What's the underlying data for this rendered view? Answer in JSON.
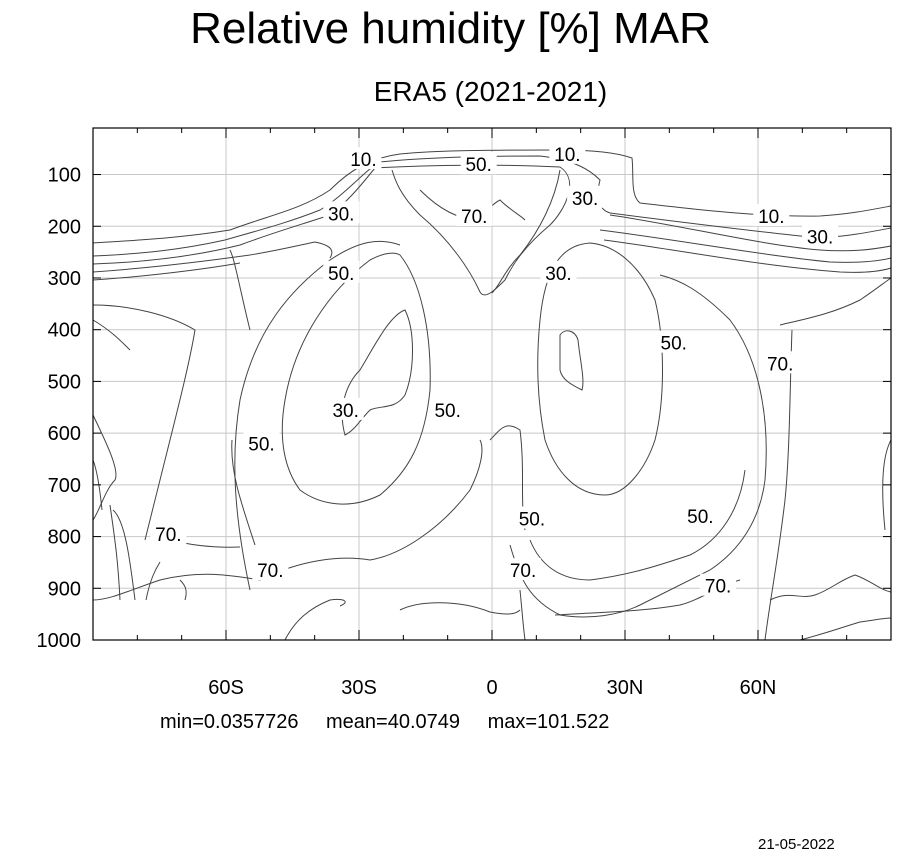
{
  "chart_data": {
    "type": "contour",
    "title": "Relative humidity [%] MAR",
    "subtitle": "ERA5 (2021-2021)",
    "x_axis": {
      "range": [
        -90,
        90
      ],
      "ticks": [
        {
          "value": -60,
          "label": "60S"
        },
        {
          "value": -30,
          "label": "30S"
        },
        {
          "value": 0,
          "label": "0"
        },
        {
          "value": 30,
          "label": "30N"
        },
        {
          "value": 60,
          "label": "60N"
        }
      ],
      "minor_step": 10
    },
    "y_axis": {
      "range": [
        10,
        1000
      ],
      "inverted": true,
      "ticks": [
        100,
        200,
        300,
        400,
        500,
        600,
        700,
        800,
        900,
        1000
      ],
      "tick_labels": [
        "100",
        "200",
        "300",
        "400",
        "500",
        "600",
        "700",
        "800",
        "900",
        "1000"
      ]
    },
    "grid": true,
    "contour_levels": [
      10,
      30,
      50,
      70
    ],
    "contour_labels": [
      {
        "text": "10.",
        "lat": -29,
        "p": 70
      },
      {
        "text": "50.",
        "lat": -3,
        "p": 80
      },
      {
        "text": "10.",
        "lat": 17,
        "p": 60
      },
      {
        "text": "30.",
        "lat": -34,
        "p": 175
      },
      {
        "text": "70.",
        "lat": -4,
        "p": 180
      },
      {
        "text": "30.",
        "lat": 21,
        "p": 145
      },
      {
        "text": "10.",
        "lat": 63,
        "p": 180
      },
      {
        "text": "30.",
        "lat": 74,
        "p": 220
      },
      {
        "text": "50.",
        "lat": -34,
        "p": 290
      },
      {
        "text": "30.",
        "lat": 15,
        "p": 290
      },
      {
        "text": "50.",
        "lat": 41,
        "p": 425
      },
      {
        "text": "70.",
        "lat": 65,
        "p": 465
      },
      {
        "text": "30.",
        "lat": -33,
        "p": 555
      },
      {
        "text": "50.",
        "lat": -10,
        "p": 555
      },
      {
        "text": "50.",
        "lat": -52,
        "p": 620
      },
      {
        "text": "50.",
        "lat": 9,
        "p": 765
      },
      {
        "text": "50.",
        "lat": 47,
        "p": 760
      },
      {
        "text": "70.",
        "lat": -73,
        "p": 795
      },
      {
        "text": "70.",
        "lat": -50,
        "p": 865
      },
      {
        "text": "70.",
        "lat": 7,
        "p": 865
      },
      {
        "text": "70.",
        "lat": 51,
        "p": 895
      }
    ]
  },
  "stats": {
    "min": "min=0.0357726",
    "mean": "mean=40.0749",
    "max": "max=101.522"
  },
  "date": "21-05-2022"
}
